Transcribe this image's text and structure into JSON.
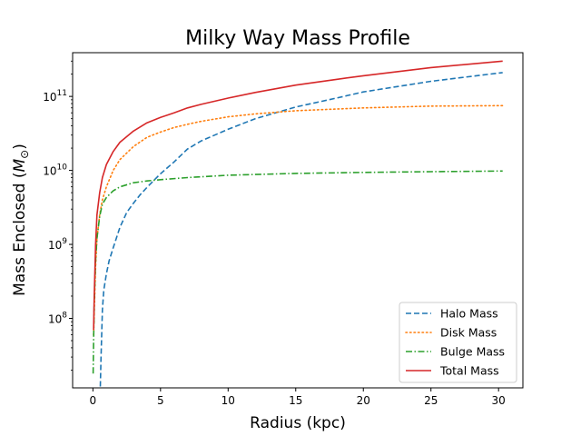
{
  "chart_data": {
    "type": "line",
    "title": "Milky Way Mass Profile",
    "xlabel": "Radius (kpc)",
    "ylabel_text": "Mass Enclosed (",
    "ylabel_symbol": "M",
    "ylabel_subscript": "⊙",
    "ylabel_close": ")",
    "xscale": "linear",
    "yscale": "log",
    "xlim": [
      -1.5,
      31.8
    ],
    "ylim": [
      11500000.0,
      390000000000.0
    ],
    "x_ticks": [
      0,
      5,
      10,
      15,
      20,
      25,
      30
    ],
    "x_tick_labels": [
      "0",
      "5",
      "10",
      "15",
      "20",
      "25",
      "30"
    ],
    "y_ticks": [
      100000000.0,
      1000000000.0,
      10000000000.0,
      100000000000.0
    ],
    "y_tick_bases": [
      "10",
      "10",
      "10",
      "10"
    ],
    "y_tick_exponents": [
      "8",
      "9",
      "10",
      "11"
    ],
    "grid": false,
    "legend_position": "lower-right",
    "series": [
      {
        "name": "Halo Mass",
        "color": "#1f77b4",
        "style": "dashed",
        "x": [
          0.55,
          0.6,
          0.7,
          0.8,
          1.0,
          1.2,
          1.5,
          2.0,
          2.5,
          3.0,
          3.5,
          4.0,
          5.0,
          6.0,
          7.0,
          8.0,
          10.0,
          12.0,
          15.0,
          18.0,
          20.0,
          25.0,
          30.3
        ],
        "y": [
          12000000.0,
          30000000.0,
          130000000.0,
          240000000.0,
          400000000.0,
          600000000.0,
          900000000.0,
          1700000000.0,
          2700000000.0,
          3600000000.0,
          4700000000.0,
          5900000000.0,
          9000000000.0,
          13000000000.0,
          19500000000.0,
          25000000000.0,
          36000000000.0,
          50000000000.0,
          72000000000.0,
          95000000000.0,
          115000000000.0,
          160000000000.0,
          210000000000.0
        ]
      },
      {
        "name": "Disk Mass",
        "color": "#ff7f0e",
        "style": "dotted",
        "x": [
          0.05,
          0.1,
          0.2,
          0.3,
          0.5,
          0.7,
          1.0,
          1.5,
          2.0,
          3.0,
          4.0,
          5.0,
          6.0,
          7.0,
          8.0,
          10.0,
          12.0,
          15.0,
          20.0,
          25.0,
          30.3
        ],
        "y": [
          60000000.0,
          120000000.0,
          500000000.0,
          1200000000.0,
          2500000000.0,
          4000000000.0,
          6000000000.0,
          10000000000.0,
          14000000000.0,
          21000000000.0,
          28000000000.0,
          33000000000.0,
          38000000000.0,
          42000000000.0,
          46000000000.0,
          53000000000.0,
          58000000000.0,
          64000000000.0,
          70000000000.0,
          74000000000.0,
          75000000000.0
        ]
      },
      {
        "name": "Bulge Mass",
        "color": "#2ca02c",
        "style": "dashdot",
        "x": [
          0.02,
          0.05,
          0.1,
          0.2,
          0.3,
          0.5,
          0.7,
          1.0,
          1.5,
          2.0,
          3.0,
          4.0,
          5.0,
          7.0,
          10.0,
          15.0,
          20.0,
          25.0,
          30.3
        ],
        "y": [
          18000000.0,
          50000000.0,
          160000000.0,
          600000000.0,
          1200000000.0,
          2400000000.0,
          3500000000.0,
          4300000000.0,
          5300000000.0,
          6000000000.0,
          6800000000.0,
          7200000000.0,
          7500000000.0,
          8000000000.0,
          8600000000.0,
          9100000000.0,
          9400000000.0,
          9600000000.0,
          9800000000.0
        ]
      },
      {
        "name": "Total Mass",
        "color": "#d62728",
        "style": "solid",
        "x": [
          0.05,
          0.1,
          0.2,
          0.3,
          0.5,
          0.7,
          1.0,
          1.5,
          2.0,
          3.0,
          4.0,
          5.0,
          6.0,
          7.0,
          8.0,
          10.0,
          12.0,
          15.0,
          18.0,
          20.0,
          25.0,
          30.3
        ],
        "y": [
          70000000.0,
          200000000.0,
          1000000000.0,
          2500000000.0,
          5000000000.0,
          8000000000.0,
          12000000000.0,
          18000000000.0,
          24000000000.0,
          34000000000.0,
          44000000000.0,
          52000000000.0,
          60000000000.0,
          70000000000.0,
          78000000000.0,
          95000000000.0,
          113000000000.0,
          142000000000.0,
          170000000000.0,
          190000000000.0,
          245000000000.0,
          300000000000.0
        ]
      }
    ]
  }
}
